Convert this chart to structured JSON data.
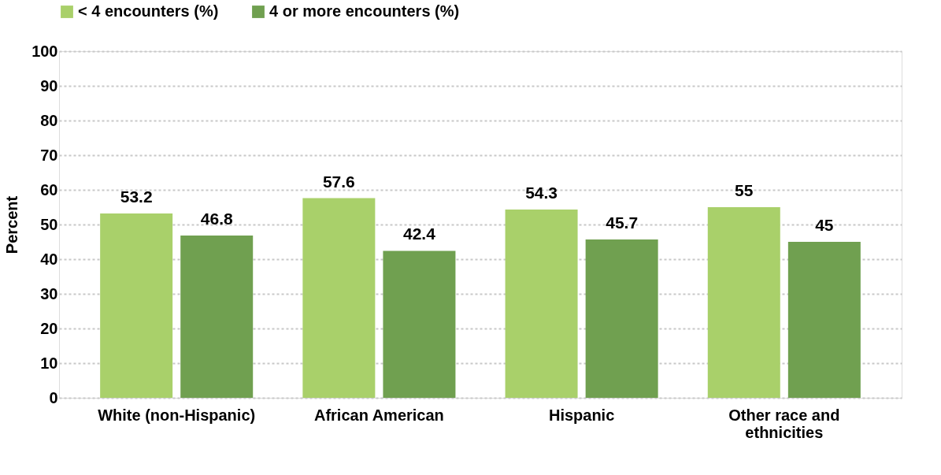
{
  "chart_data": {
    "type": "bar",
    "ylabel": "Percent",
    "categories": [
      "White (non-Hispanic)",
      "African American",
      "Hispanic",
      "Other race and ethnicities"
    ],
    "series": [
      {
        "name": "< 4 encounters (%)",
        "color": "#a9d06a",
        "values": [
          53.2,
          57.6,
          54.3,
          55
        ]
      },
      {
        "name": "4 or more encounters (%)",
        "color": "#70a050",
        "values": [
          46.8,
          42.4,
          45.7,
          45
        ]
      }
    ],
    "ylim": [
      0,
      100
    ],
    "yticks": [
      0,
      10,
      20,
      30,
      40,
      50,
      60,
      70,
      80,
      90,
      100
    ],
    "grid": "y",
    "legend": "top",
    "data_labels": true
  }
}
